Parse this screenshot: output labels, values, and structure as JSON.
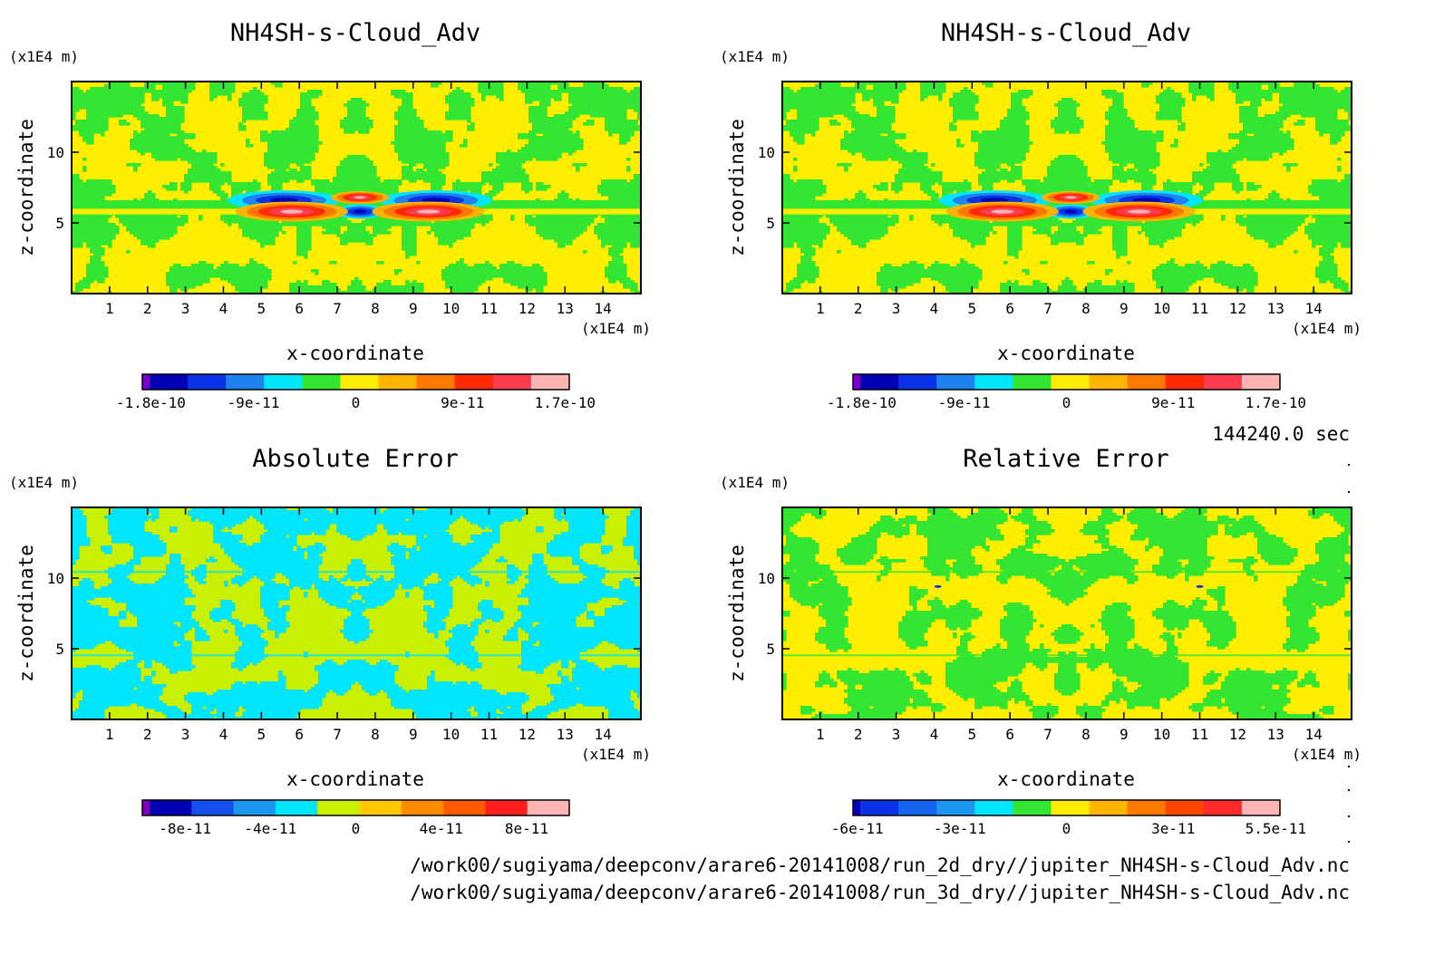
{
  "panels": [
    {
      "id": "top-left",
      "title": "NH4SH-s-Cloud_Adv",
      "xlabel": "x-coordinate",
      "ylabel": "z-coordinate",
      "xunit": "(x1E4 m)",
      "yunit": "(x1E4 m)",
      "xticks": [
        "1",
        "2",
        "3",
        "4",
        "5",
        "6",
        "7",
        "8",
        "9",
        "10",
        "11",
        "12",
        "13",
        "14"
      ],
      "yticks": [
        "5",
        "10"
      ],
      "pattern": "field",
      "colorbar": {
        "colors": [
          "#7a00c8",
          "#0000b4",
          "#0a32e6",
          "#1e82f0",
          "#00e6ff",
          "#32e632",
          "#ffee00",
          "#ffb400",
          "#ff7800",
          "#ff2a00",
          "#ff3c50",
          "#ffb4b4"
        ],
        "labels": [
          "-1.8e-10",
          "-9e-11",
          "0",
          "9e-11",
          "1.7e-10"
        ]
      }
    },
    {
      "id": "top-right",
      "title": "NH4SH-s-Cloud_Adv",
      "xlabel": "x-coordinate",
      "ylabel": "z-coordinate",
      "xunit": "(x1E4 m)",
      "yunit": "(x1E4 m)",
      "xticks": [
        "1",
        "2",
        "3",
        "4",
        "5",
        "6",
        "7",
        "8",
        "9",
        "10",
        "11",
        "12",
        "13",
        "14"
      ],
      "yticks": [
        "5",
        "10"
      ],
      "pattern": "field",
      "colorbar": {
        "colors": [
          "#7a00c8",
          "#0000b4",
          "#0a32e6",
          "#1e82f0",
          "#00e6ff",
          "#32e632",
          "#ffee00",
          "#ffb400",
          "#ff7800",
          "#ff2a00",
          "#ff3c50",
          "#ffb4b4"
        ],
        "labels": [
          "-1.8e-10",
          "-9e-11",
          "0",
          "9e-11",
          "1.7e-10"
        ]
      }
    },
    {
      "id": "bottom-left",
      "title": "Absolute Error",
      "xlabel": "x-coordinate",
      "ylabel": "z-coordinate",
      "xunit": "(x1E4 m)",
      "yunit": "(x1E4 m)",
      "xticks": [
        "1",
        "2",
        "3",
        "4",
        "5",
        "6",
        "7",
        "8",
        "9",
        "10",
        "11",
        "12",
        "13",
        "14"
      ],
      "yticks": [
        "5",
        "10"
      ],
      "pattern": "abs",
      "colorbar": {
        "colors": [
          "#8200b4",
          "#0000b4",
          "#1450f0",
          "#1e96f0",
          "#00e6ff",
          "#c8f000",
          "#ffc800",
          "#ff8c00",
          "#ff5a00",
          "#ff1e1e",
          "#ffb4b4"
        ],
        "labels": [
          "-8e-11",
          "-4e-11",
          "0",
          "4e-11",
          "8e-11"
        ]
      }
    },
    {
      "id": "bottom-right",
      "title": "Relative Error",
      "xlabel": "x-coordinate",
      "ylabel": "z-coordinate",
      "xunit": "(x1E4 m)",
      "yunit": "(x1E4 m)",
      "xticks": [
        "1",
        "2",
        "3",
        "4",
        "5",
        "6",
        "7",
        "8",
        "9",
        "10",
        "11",
        "12",
        "13",
        "14"
      ],
      "yticks": [
        "5",
        "10"
      ],
      "pattern": "rel",
      "colorbar": {
        "colors": [
          "#0000b4",
          "#0a32e6",
          "#1464f0",
          "#1e96f0",
          "#00e6ff",
          "#32e632",
          "#ffee00",
          "#ffb400",
          "#ff7800",
          "#ff4600",
          "#ff2a2a",
          "#ffb4b4"
        ],
        "labels": [
          "-6e-11",
          "-3e-11",
          "0",
          "3e-11",
          "5.5e-11"
        ]
      }
    }
  ],
  "time_label": "144240.0 sec",
  "file_paths": [
    "/work00/sugiyama/deepconv/arare6-20141008/run_2d_dry//jupiter_NH4SH-s-Cloud_Adv.nc",
    "/work00/sugiyama/deepconv/arare6-20141008/run_3d_dry//jupiter_NH4SH-s-Cloud_Adv.nc"
  ],
  "chart_data": [
    {
      "type": "heatmap",
      "title": "NH4SH-s-Cloud_Adv",
      "xlabel": "x-coordinate",
      "ylabel": "z-coordinate",
      "xunit": "(x1E4 m)",
      "yunit": "(x1E4 m)",
      "xlim": [
        0,
        15
      ],
      "ylim": [
        0,
        15
      ],
      "xticks": [
        1,
        2,
        3,
        4,
        5,
        6,
        7,
        8,
        9,
        10,
        11,
        12,
        13,
        14
      ],
      "yticks": [
        5,
        10
      ],
      "colorbar_ticks": [
        "-1.8e-10",
        "-9e-11",
        "0",
        "9e-11",
        "1.7e-10"
      ]
    },
    {
      "type": "heatmap",
      "title": "NH4SH-s-Cloud_Adv",
      "xlabel": "x-coordinate",
      "ylabel": "z-coordinate",
      "xunit": "(x1E4 m)",
      "yunit": "(x1E4 m)",
      "xlim": [
        0,
        15
      ],
      "ylim": [
        0,
        15
      ],
      "xticks": [
        1,
        2,
        3,
        4,
        5,
        6,
        7,
        8,
        9,
        10,
        11,
        12,
        13,
        14
      ],
      "yticks": [
        5,
        10
      ],
      "colorbar_ticks": [
        "-1.8e-10",
        "-9e-11",
        "0",
        "9e-11",
        "1.7e-10"
      ]
    },
    {
      "type": "heatmap",
      "title": "Absolute Error",
      "xlabel": "x-coordinate",
      "ylabel": "z-coordinate",
      "xunit": "(x1E4 m)",
      "yunit": "(x1E4 m)",
      "xlim": [
        0,
        15
      ],
      "ylim": [
        0,
        15
      ],
      "xticks": [
        1,
        2,
        3,
        4,
        5,
        6,
        7,
        8,
        9,
        10,
        11,
        12,
        13,
        14
      ],
      "yticks": [
        5,
        10
      ],
      "colorbar_ticks": [
        "-8e-11",
        "-4e-11",
        "0",
        "4e-11",
        "8e-11"
      ]
    },
    {
      "type": "heatmap",
      "title": "Relative Error",
      "xlabel": "x-coordinate",
      "ylabel": "z-coordinate",
      "xunit": "(x1E4 m)",
      "yunit": "(x1E4 m)",
      "xlim": [
        0,
        15
      ],
      "ylim": [
        0,
        15
      ],
      "xticks": [
        1,
        2,
        3,
        4,
        5,
        6,
        7,
        8,
        9,
        10,
        11,
        12,
        13,
        14
      ],
      "yticks": [
        5,
        10
      ],
      "colorbar_ticks": [
        "-6e-11",
        "-3e-11",
        "0",
        "3e-11",
        "5.5e-11"
      ]
    }
  ]
}
